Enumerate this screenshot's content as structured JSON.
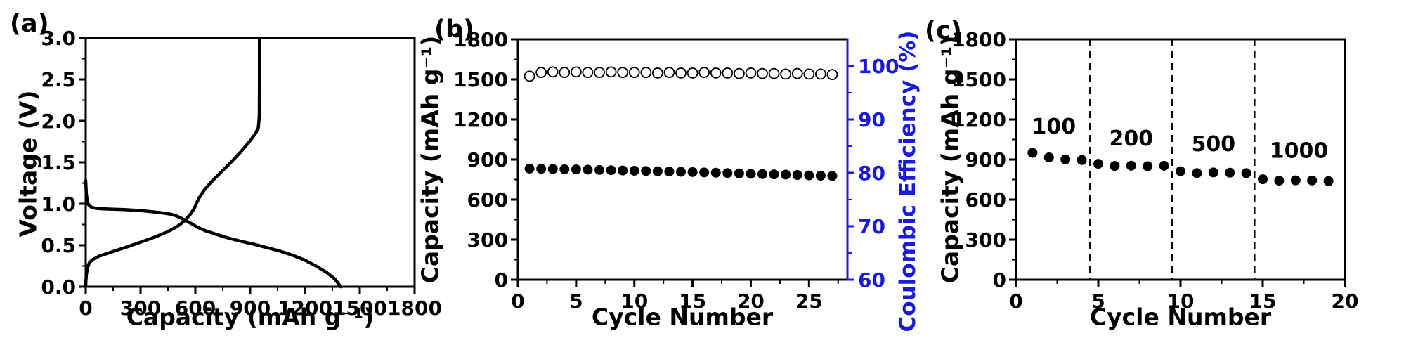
{
  "figure": {
    "background": "#ffffff",
    "panels": [
      "(a)",
      "(b)",
      "(c)"
    ]
  },
  "colors": {
    "primary": "#000000",
    "efficiency_blue": "#1a1adb",
    "background": "#ffffff"
  },
  "chart_data": [
    {
      "panel_label": "(a)",
      "type": "line",
      "xlabel": "Capacity (mAh g⁻¹)",
      "ylabel": "Voltage (V)",
      "xlim": [
        0,
        1800
      ],
      "ylim": [
        0,
        3.0
      ],
      "xticks": [
        0,
        300,
        600,
        900,
        1200,
        1500,
        1800
      ],
      "xtick_labels": [
        "0",
        "300",
        "600",
        "900",
        "1200",
        "1500",
        "1800"
      ],
      "yticks": [
        0,
        0.5,
        1.0,
        1.5,
        2.0,
        2.5,
        3.0
      ],
      "ytick_labels": [
        "0.0",
        "0.5",
        "1.0",
        "1.5",
        "2.0",
        "2.5",
        "3.0"
      ],
      "x_minor_step": 150,
      "y_minor_step": 0.25,
      "grid": false,
      "series": [
        {
          "name": "discharge-curve",
          "style": "line",
          "color": "#000000",
          "x": [
            0,
            3,
            8,
            15,
            30,
            55,
            90,
            140,
            210,
            290,
            360,
            420,
            465,
            495,
            520,
            545,
            575,
            610,
            655,
            710,
            775,
            845,
            915,
            985,
            1055,
            1125,
            1195,
            1260,
            1320,
            1365,
            1395
          ],
          "y": [
            1.28,
            1.13,
            1.04,
            0.99,
            0.96,
            0.945,
            0.94,
            0.935,
            0.93,
            0.92,
            0.905,
            0.89,
            0.875,
            0.855,
            0.83,
            0.8,
            0.765,
            0.72,
            0.675,
            0.635,
            0.59,
            0.55,
            0.515,
            0.475,
            0.435,
            0.385,
            0.325,
            0.25,
            0.17,
            0.09,
            0.0
          ]
        },
        {
          "name": "charge-curve",
          "style": "line",
          "color": "#000000",
          "x": [
            0,
            1,
            4,
            10,
            20,
            40,
            70,
            110,
            170,
            240,
            310,
            380,
            440,
            480,
            510,
            535,
            555,
            575,
            595,
            620,
            650,
            690,
            740,
            795,
            850,
            900,
            930,
            945,
            950,
            951,
            951
          ],
          "y": [
            0.0,
            0.07,
            0.15,
            0.23,
            0.29,
            0.33,
            0.365,
            0.395,
            0.44,
            0.49,
            0.545,
            0.6,
            0.655,
            0.7,
            0.74,
            0.785,
            0.83,
            0.88,
            0.95,
            1.07,
            1.17,
            1.27,
            1.38,
            1.5,
            1.63,
            1.76,
            1.85,
            1.92,
            2.05,
            2.5,
            3.0
          ]
        }
      ]
    },
    {
      "panel_label": "(b)",
      "type": "scatter",
      "xlabel": "Cycle Number",
      "ylabel": "Capacity (mAh g⁻¹)",
      "y2label": "Coulombic Efficiency (%)",
      "xlim": [
        0,
        28.3
      ],
      "ylim": [
        0,
        1800
      ],
      "y2lim": [
        60,
        105
      ],
      "xticks": [
        0,
        5,
        10,
        15,
        20,
        25
      ],
      "xtick_labels": [
        "0",
        "5",
        "10",
        "15",
        "20",
        "25"
      ],
      "yticks": [
        0,
        300,
        600,
        900,
        1200,
        1500,
        1800
      ],
      "ytick_labels": [
        "0",
        "300",
        "600",
        "900",
        "1200",
        "1500",
        "1800"
      ],
      "y2ticks": [
        60,
        70,
        80,
        90,
        100
      ],
      "y2tick_labels": [
        "60",
        "70",
        "80",
        "90",
        "100"
      ],
      "x_minor_step": 2.5,
      "y_minor_step": 150,
      "y2_minor_step": 5,
      "grid": false,
      "series": [
        {
          "name": "capacity",
          "style": "scatter",
          "marker": "filled-circle",
          "axis": "left",
          "color": "#000000",
          "x": [
            1,
            2,
            3,
            4,
            5,
            6,
            7,
            8,
            9,
            10,
            11,
            12,
            13,
            14,
            15,
            16,
            17,
            18,
            19,
            20,
            21,
            22,
            23,
            24,
            25,
            26,
            27
          ],
          "y": [
            832,
            830,
            829,
            827,
            826,
            824,
            822,
            820,
            818,
            816,
            814,
            812,
            810,
            808,
            806,
            803,
            801,
            799,
            796,
            793,
            791,
            789,
            787,
            784,
            781,
            779,
            777
          ]
        },
        {
          "name": "coulombic-efficiency",
          "style": "scatter",
          "marker": "open-circle",
          "axis": "right",
          "color": "#000000",
          "x": [
            1,
            2,
            3,
            4,
            5,
            6,
            7,
            8,
            9,
            10,
            11,
            12,
            13,
            14,
            15,
            16,
            17,
            18,
            19,
            20,
            21,
            22,
            23,
            24,
            25,
            26,
            27
          ],
          "y": [
            98.1,
            98.8,
            98.9,
            98.8,
            98.9,
            98.8,
            98.8,
            98.9,
            98.8,
            98.8,
            98.8,
            98.7,
            98.8,
            98.7,
            98.7,
            98.8,
            98.7,
            98.7,
            98.6,
            98.7,
            98.6,
            98.6,
            98.5,
            98.6,
            98.5,
            98.5,
            98.4
          ]
        }
      ]
    },
    {
      "panel_label": "(c)",
      "type": "scatter",
      "xlabel": "Cycle Number",
      "ylabel": "Capacity (mAh g⁻¹)",
      "xlim": [
        0,
        20
      ],
      "ylim": [
        0,
        1800
      ],
      "xticks": [
        0,
        5,
        10,
        15,
        20
      ],
      "xtick_labels": [
        "0",
        "5",
        "10",
        "15",
        "20"
      ],
      "yticks": [
        0,
        300,
        600,
        900,
        1200,
        1500,
        1800
      ],
      "ytick_labels": [
        "0",
        "300",
        "600",
        "900",
        "1200",
        "1500",
        "1800"
      ],
      "x_minor_step": 2.5,
      "y_minor_step": 150,
      "grid": false,
      "separators_x": [
        4.5,
        9.5,
        14.5
      ],
      "annotations": [
        {
          "text": "100",
          "x": 2.3,
          "y": 1095
        },
        {
          "text": "200",
          "x": 7.0,
          "y": 1005
        },
        {
          "text": "500",
          "x": 12.0,
          "y": 963
        },
        {
          "text": "1000",
          "x": 17.2,
          "y": 912
        }
      ],
      "series": [
        {
          "name": "rate-capacity",
          "style": "scatter",
          "marker": "filled-circle",
          "axis": "left",
          "color": "#000000",
          "x": [
            1,
            2,
            3,
            4,
            5,
            6,
            7,
            8,
            9,
            10,
            11,
            12,
            13,
            14,
            15,
            16,
            17,
            18,
            19
          ],
          "y": [
            950,
            916,
            901,
            896,
            868,
            852,
            854,
            850,
            853,
            812,
            798,
            803,
            801,
            798,
            752,
            742,
            744,
            743,
            738
          ]
        }
      ]
    }
  ]
}
